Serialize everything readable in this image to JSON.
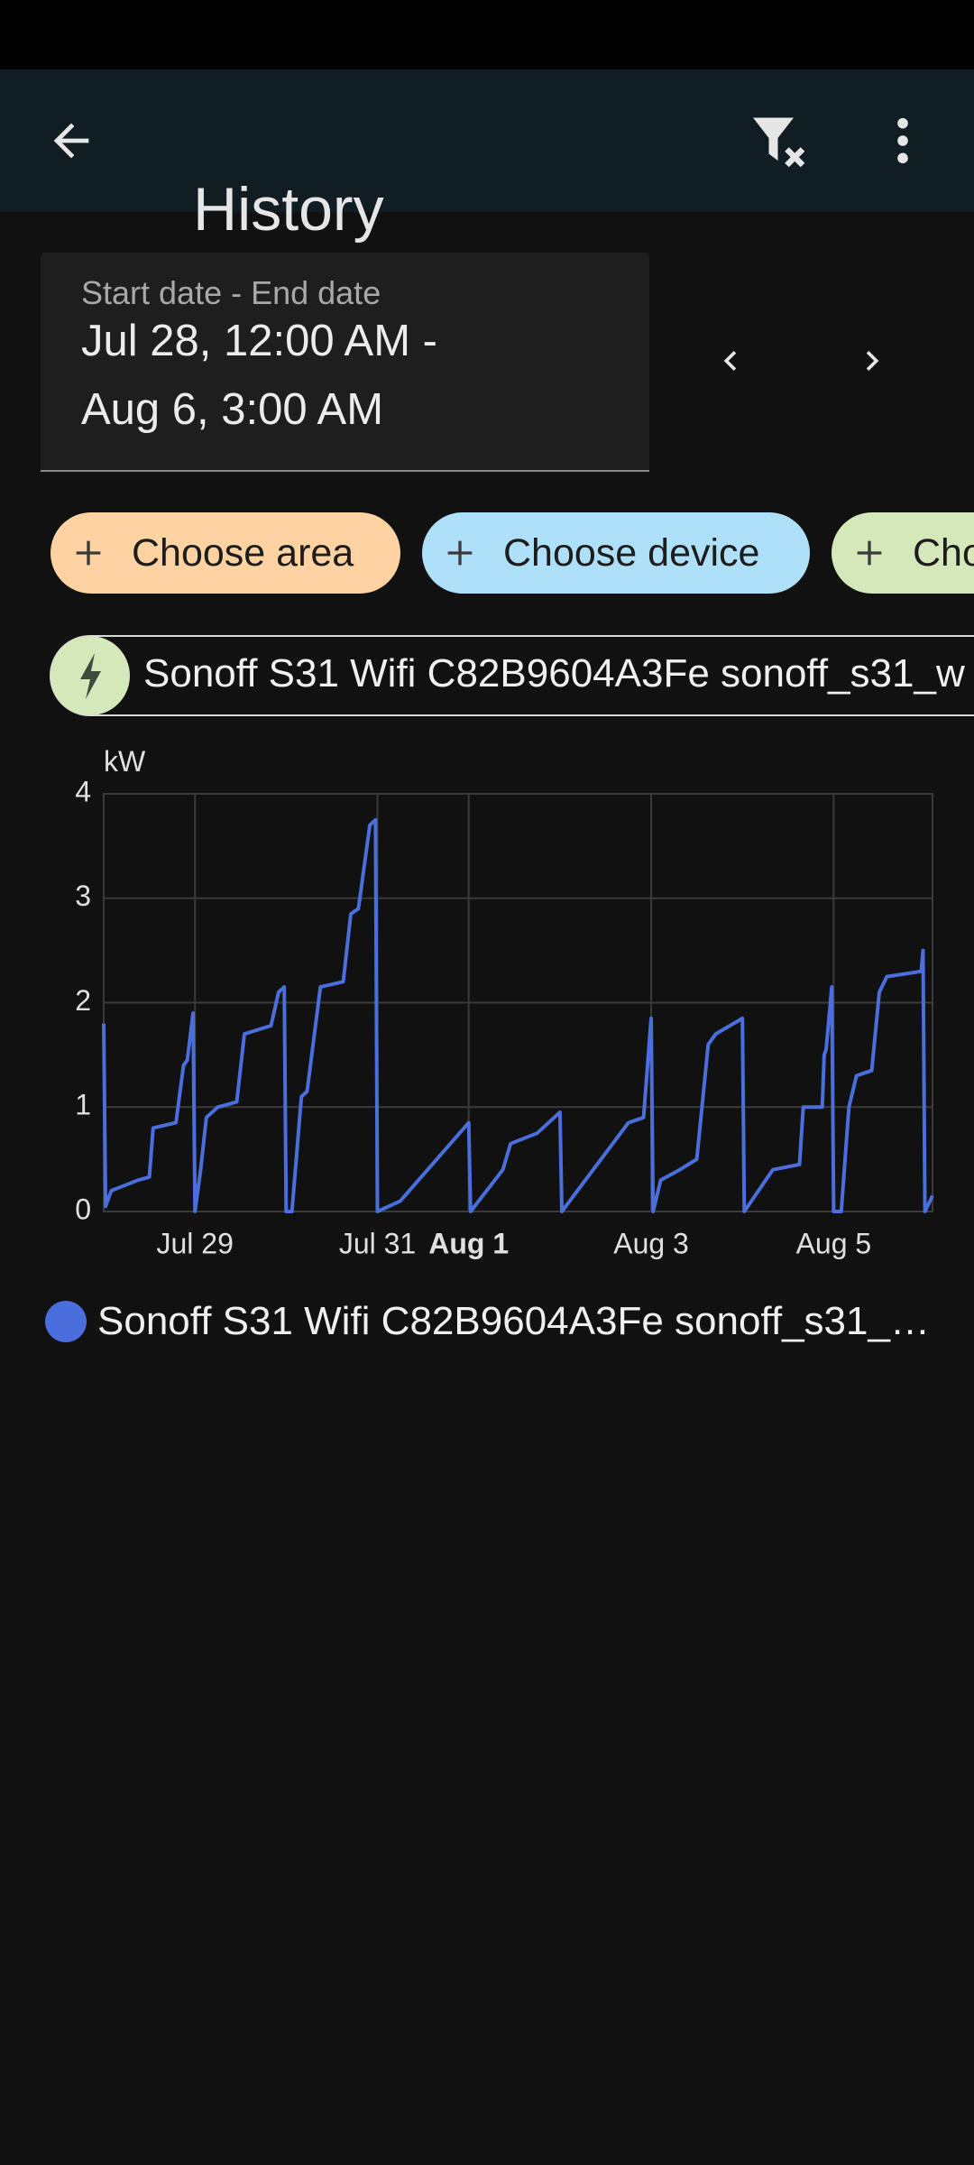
{
  "header": {
    "title": "History"
  },
  "date_picker": {
    "label": "Start date - End date",
    "value_line1": "Jul 28, 12:00 AM -",
    "value_line2": "Aug 6, 3:00 AM"
  },
  "chips": [
    {
      "label": "Choose area",
      "color": "#ffd3a1"
    },
    {
      "label": "Choose device",
      "color": "#afe0fa"
    },
    {
      "label": "Cho",
      "color": "#d4e8ba"
    }
  ],
  "entity_chip": {
    "label": "Sonoff S31 Wifi C82B9604A3Fe sonoff_s31_w"
  },
  "chart_data": {
    "type": "line",
    "y_unit": "kW",
    "x": [
      "Jul 28 00:00",
      "Jul 28 00:30",
      "Jul 28 02:00",
      "Jul 28 09:00",
      "Jul 28 12:00",
      "Jul 28 13:00",
      "Jul 28 19:00",
      "Jul 28 21:00",
      "Jul 28 22:00",
      "Jul 28 23:30",
      "Jul 29 00:00",
      "Jul 29 01:30",
      "Jul 29 03:00",
      "Jul 29 06:00",
      "Jul 29 11:00",
      "Jul 29 13:00",
      "Jul 29 20:00",
      "Jul 29 22:00",
      "Jul 29 23:30",
      "Jul 30 00:00",
      "Jul 30 01:30",
      "Jul 30 04:00",
      "Jul 30 05:30",
      "Jul 30 09:00",
      "Jul 30 15:00",
      "Jul 30 17:00",
      "Jul 30 19:00",
      "Jul 30 22:00",
      "Jul 30 23:30",
      "Jul 31 00:00",
      "Jul 31 06:00",
      "Aug 1 00:00",
      "Aug 1 00:30",
      "Aug 1 09:00",
      "Aug 1 11:00",
      "Aug 1 18:00",
      "Aug 2 00:00",
      "Aug 2 00:30",
      "Aug 2 18:00",
      "Aug 2 22:00",
      "Aug 3 00:00",
      "Aug 3 00:30",
      "Aug 3 02:30",
      "Aug 3 07:30",
      "Aug 3 12:00",
      "Aug 3 15:00",
      "Aug 3 17:00",
      "Aug 4 00:00",
      "Aug 4 00:30",
      "Aug 4 08:00",
      "Aug 4 15:00",
      "Aug 4 16:00",
      "Aug 4 21:00",
      "Aug 4 21:30",
      "Aug 4 22:00",
      "Aug 4 23:30",
      "Aug 5 00:00",
      "Aug 5 02:00",
      "Aug 5 04:00",
      "Aug 5 06:00",
      "Aug 5 10:00",
      "Aug 5 12:00",
      "Aug 5 14:00",
      "Aug 5 23:00",
      "Aug 5 23:30",
      "Aug 6 00:00",
      "Aug 6 02:00"
    ],
    "series": [
      {
        "name": "Sonoff S31 Wifi C82B9604A3Fe sonoff_s31_…",
        "color": "#4a6fdc",
        "values": [
          1.8,
          0.05,
          0.2,
          0.3,
          0.33,
          0.8,
          0.85,
          1.4,
          1.45,
          1.9,
          0,
          0.4,
          0.9,
          1.0,
          1.05,
          1.7,
          1.78,
          2.1,
          2.15,
          0,
          0,
          1.1,
          1.15,
          2.15,
          2.2,
          2.85,
          2.9,
          3.7,
          3.75,
          0,
          0.1,
          0.85,
          0,
          0.4,
          0.65,
          0.75,
          0.95,
          0,
          0.85,
          0.9,
          1.85,
          0,
          0.3,
          0.4,
          0.5,
          1.6,
          1.7,
          1.85,
          0,
          0.4,
          0.45,
          1.0,
          1.0,
          1.5,
          1.55,
          2.15,
          0,
          0,
          1.0,
          1.3,
          1.35,
          2.1,
          2.25,
          2.3,
          2.5,
          0,
          0.15
        ]
      }
    ],
    "xlim": [
      "Jul 28 00:00",
      "Aug 6 02:00"
    ],
    "xticks": [
      {
        "value": "Jul 29 00:00",
        "label": "Jul 29"
      },
      {
        "value": "Jul 31 00:00",
        "label": "Jul 31"
      },
      {
        "value": "Aug 1 00:00",
        "label": "Aug 1",
        "bold": true
      },
      {
        "value": "Aug 3 00:00",
        "label": "Aug 3"
      },
      {
        "value": "Aug 5 00:00",
        "label": "Aug 5"
      }
    ],
    "ylim": [
      0,
      4
    ],
    "yticks": [
      0,
      1,
      2,
      3,
      4
    ],
    "grid": true
  }
}
